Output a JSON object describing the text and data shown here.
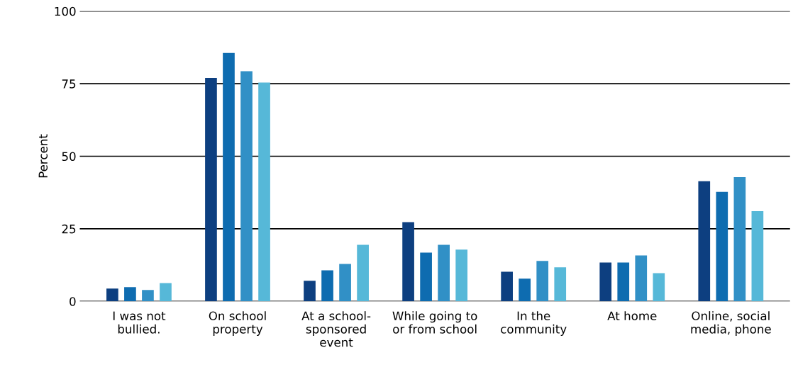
{
  "chart_data": {
    "type": "bar",
    "ylabel": "Percent",
    "categories": [
      "I was not\nbullied.",
      "On school\nproperty",
      "At a school-\nsponsored\nevent",
      "While going to\nor from school",
      "In the\ncommunity",
      "At home",
      "Online, social\nmedia, phone"
    ],
    "series": [
      {
        "color": "#0d3f80",
        "values": [
          4.4,
          77,
          7.1,
          27.3,
          10.2,
          13.4,
          41.4
        ]
      },
      {
        "color": "#0e6cb0",
        "values": [
          4.9,
          85.6,
          10.7,
          16.8,
          7.8,
          13.4,
          37.7
        ]
      },
      {
        "color": "#3190c6",
        "values": [
          3.9,
          79.3,
          12.9,
          19.5,
          13.9,
          15.8,
          42.8
        ]
      },
      {
        "color": "#56b8d8",
        "values": [
          6.3,
          75.4,
          19.5,
          17.8,
          11.7,
          9.7,
          31.1
        ]
      }
    ],
    "ylim": [
      0,
      100
    ],
    "yticks": [
      0,
      25,
      50,
      75,
      100
    ],
    "grid": "y",
    "legend": false
  }
}
